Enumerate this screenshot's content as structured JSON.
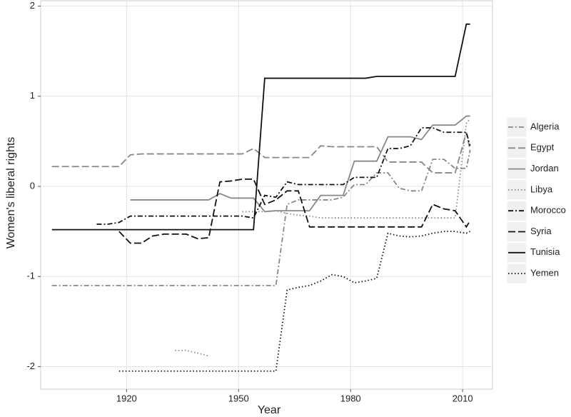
{
  "chart_data": {
    "type": "line",
    "x_label": "Year",
    "y_label": "Women's liberal rights",
    "x": [
      1900,
      1903,
      1906,
      1909,
      1912,
      1915,
      1918,
      1921,
      1924,
      1927,
      1930,
      1933,
      1936,
      1939,
      1942,
      1945,
      1948,
      1951,
      1954,
      1957,
      1960,
      1963,
      1966,
      1969,
      1972,
      1975,
      1978,
      1981,
      1984,
      1987,
      1990,
      1993,
      1996,
      1999,
      2002,
      2005,
      2008,
      2011,
      2012
    ],
    "xlim": [
      1897,
      2018
    ],
    "xticks": [
      1920,
      1950,
      1980,
      2010
    ],
    "ylim": [
      -2.25,
      2.06
    ],
    "yticks": [
      -2,
      -1,
      0,
      1,
      2
    ],
    "grid": true,
    "legend": "right",
    "series": [
      {
        "name": "Algeria",
        "color": "#888888",
        "dash": "7,3,2,3",
        "values": [
          -1.1,
          -1.1,
          -1.1,
          -1.1,
          -1.1,
          -1.1,
          -1.1,
          -1.1,
          -1.1,
          -1.1,
          -1.1,
          -1.1,
          -1.1,
          -1.1,
          -1.1,
          -1.1,
          -1.1,
          -1.1,
          -1.1,
          -1.1,
          -1.1,
          -0.2,
          -0.15,
          -0.15,
          -0.15,
          -0.15,
          -0.12,
          0.02,
          0.02,
          0.15,
          0.15,
          -0.02,
          -0.05,
          -0.05,
          0.3,
          0.3,
          0.2,
          0.2,
          0.4
        ]
      },
      {
        "name": "Egypt",
        "color": "#888888",
        "dash": "10,4",
        "values": [
          0.22,
          0.22,
          0.22,
          0.22,
          0.22,
          0.22,
          0.22,
          0.35,
          0.36,
          0.36,
          0.36,
          0.36,
          0.36,
          0.36,
          0.36,
          0.36,
          0.36,
          0.36,
          0.42,
          0.32,
          0.32,
          0.32,
          0.32,
          0.32,
          0.45,
          0.44,
          0.44,
          0.44,
          0.44,
          0.44,
          0.27,
          0.27,
          0.27,
          0.27,
          0.15,
          0.15,
          0.15,
          0.6,
          0.4
        ]
      },
      {
        "name": "Jordan",
        "color": "#888888",
        "dash": "",
        "values": [
          null,
          null,
          null,
          null,
          null,
          null,
          null,
          -0.15,
          -0.15,
          -0.15,
          -0.15,
          -0.15,
          -0.15,
          -0.15,
          -0.15,
          -0.08,
          -0.13,
          -0.13,
          -0.13,
          -0.28,
          -0.27,
          -0.27,
          -0.27,
          -0.27,
          -0.1,
          -0.1,
          -0.1,
          0.28,
          0.28,
          0.28,
          0.55,
          0.55,
          0.55,
          0.52,
          0.68,
          0.68,
          0.68,
          0.78,
          0.78
        ]
      },
      {
        "name": "Libya",
        "color": "#888888",
        "dash": "1.5,3",
        "values": [
          null,
          null,
          null,
          null,
          null,
          null,
          null,
          null,
          null,
          null,
          null,
          -1.82,
          -1.82,
          -1.85,
          -1.88,
          null,
          null,
          -0.28,
          -0.28,
          -0.28,
          -0.27,
          -0.3,
          -0.32,
          -0.33,
          -0.35,
          -0.35,
          -0.35,
          -0.35,
          -0.35,
          -0.35,
          -0.35,
          -0.35,
          -0.35,
          -0.35,
          -0.35,
          -0.35,
          -0.35,
          0.7,
          0.75
        ]
      },
      {
        "name": "Morocco",
        "color": "#111111",
        "dash": "7,3,2,3",
        "values": [
          null,
          null,
          null,
          null,
          -0.42,
          -0.42,
          -0.4,
          -0.33,
          -0.33,
          -0.33,
          -0.33,
          -0.33,
          -0.33,
          -0.33,
          -0.33,
          -0.33,
          -0.33,
          -0.33,
          -0.35,
          -0.1,
          -0.12,
          0.05,
          0.02,
          0.02,
          0.02,
          0.02,
          0.02,
          0.1,
          0.1,
          0.1,
          0.42,
          0.42,
          0.45,
          0.65,
          0.65,
          0.6,
          0.6,
          0.6,
          0.45
        ]
      },
      {
        "name": "Syria",
        "color": "#111111",
        "dash": "10,4",
        "values": [
          null,
          null,
          null,
          null,
          null,
          null,
          -0.5,
          -0.63,
          -0.63,
          -0.55,
          -0.53,
          -0.53,
          -0.53,
          -0.58,
          -0.57,
          0.05,
          0.06,
          0.08,
          0.08,
          -0.2,
          -0.15,
          -0.05,
          -0.05,
          -0.45,
          -0.45,
          -0.45,
          -0.45,
          -0.45,
          -0.45,
          -0.45,
          -0.45,
          -0.45,
          -0.45,
          -0.45,
          -0.2,
          -0.25,
          -0.27,
          -0.45,
          -0.38
        ]
      },
      {
        "name": "Tunisia",
        "color": "#111111",
        "dash": "",
        "values": [
          -0.48,
          -0.48,
          -0.48,
          -0.48,
          -0.48,
          -0.48,
          -0.48,
          -0.48,
          -0.48,
          -0.48,
          -0.48,
          -0.48,
          -0.48,
          -0.48,
          -0.48,
          -0.48,
          -0.48,
          -0.48,
          -0.48,
          1.2,
          1.2,
          1.2,
          1.2,
          1.2,
          1.2,
          1.2,
          1.2,
          1.2,
          1.2,
          1.22,
          1.22,
          1.22,
          1.22,
          1.22,
          1.22,
          1.22,
          1.22,
          1.8,
          1.8
        ]
      },
      {
        "name": "Yemen",
        "color": "#111111",
        "dash": "1.5,3",
        "values": [
          null,
          null,
          null,
          null,
          null,
          null,
          -2.05,
          -2.05,
          -2.05,
          -2.05,
          -2.05,
          -2.05,
          -2.05,
          -2.05,
          -2.05,
          -2.05,
          -2.05,
          -2.05,
          -2.05,
          -2.05,
          -2.05,
          -1.15,
          -1.12,
          -1.1,
          -1.05,
          -0.98,
          -1.0,
          -1.07,
          -1.05,
          -1.02,
          -0.52,
          -0.55,
          -0.56,
          -0.55,
          -0.52,
          -0.5,
          -0.5,
          -0.52,
          -0.5
        ]
      }
    ]
  }
}
